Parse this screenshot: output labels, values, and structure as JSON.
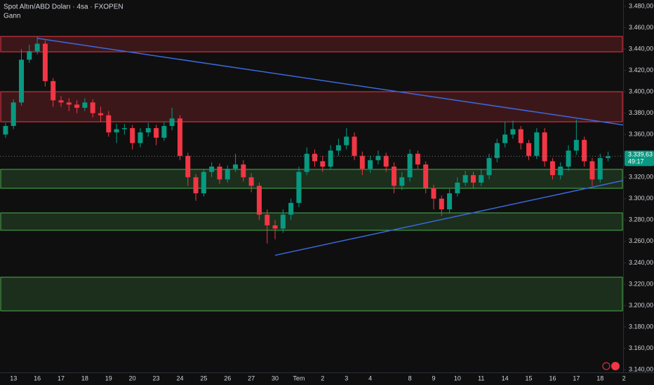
{
  "chart_data": {
    "type": "candlestick",
    "title": "Spot Altın/ABD Doları · 4sa · FXOPEN",
    "subtitle": "Gann",
    "categories": [
      null,
      "13",
      null,
      null,
      "16",
      null,
      null,
      "17",
      null,
      null,
      "18",
      null,
      null,
      "19",
      null,
      null,
      "20",
      null,
      null,
      "23",
      null,
      null,
      "24",
      null,
      null,
      "25",
      null,
      null,
      "26",
      null,
      null,
      "27",
      null,
      null,
      "30",
      null,
      null,
      "Tem",
      null,
      null,
      "2",
      null,
      null,
      "3",
      null,
      null,
      "4",
      null,
      null,
      null,
      null,
      "8",
      null,
      null,
      "9",
      null,
      null,
      "10",
      null,
      null,
      "11",
      null,
      null,
      "14",
      null,
      null,
      "15",
      null,
      null,
      "16",
      null,
      null,
      "17",
      null,
      null,
      "18",
      null,
      null,
      "2"
    ],
    "open": [
      3360,
      3368,
      3390,
      3430,
      3438,
      3445,
      3410,
      3392,
      3390,
      3388,
      3385,
      3390,
      3380,
      3378,
      3362,
      3365,
      3366,
      3352,
      3362,
      3366,
      3357,
      3368,
      3375,
      3340,
      3320,
      3305,
      3325,
      3330,
      3318,
      3328,
      3332,
      3320,
      3312,
      3285,
      3275,
      3272,
      3285,
      3296,
      3325,
      3342,
      3335,
      3330,
      3345,
      3350,
      3358,
      3340,
      3328,
      3336,
      3340,
      3330,
      3312,
      3320,
      3342,
      3332,
      3310,
      3300,
      3290,
      3305,
      3315,
      3322,
      3315,
      3322,
      3338,
      3352,
      3360,
      3365,
      3352,
      3340,
      3362,
      3335,
      3322,
      3330,
      3345,
      3355,
      3335,
      3318,
      3338,
      null,
      null
    ],
    "high": [
      3371,
      3393,
      3440,
      3444,
      3452,
      3448,
      3413,
      3396,
      3394,
      3392,
      3394,
      3393,
      3386,
      3382,
      3370,
      3370,
      3369,
      3366,
      3371,
      3369,
      3372,
      3385,
      3378,
      3343,
      3323,
      3328,
      3334,
      3333,
      3331,
      3342,
      3336,
      3324,
      3315,
      3290,
      3280,
      3290,
      3300,
      3330,
      3348,
      3346,
      3340,
      3350,
      3356,
      3366,
      3362,
      3344,
      3340,
      3345,
      3343,
      3334,
      3325,
      3346,
      3345,
      3335,
      3313,
      3303,
      3309,
      3320,
      3326,
      3325,
      3328,
      3342,
      3356,
      3372,
      3373,
      3368,
      3355,
      3366,
      3366,
      3338,
      3334,
      3350,
      3374,
      3358,
      3338,
      3342,
      3344,
      null,
      null
    ],
    "low": [
      3357,
      3365,
      3387,
      3427,
      3435,
      3405,
      3386,
      3386,
      3382,
      3380,
      3382,
      3376,
      3372,
      3358,
      3352,
      3360,
      3346,
      3348,
      3358,
      3350,
      3354,
      3364,
      3336,
      3312,
      3298,
      3302,
      3320,
      3314,
      3315,
      3325,
      3316,
      3306,
      3280,
      3258,
      3262,
      3268,
      3280,
      3292,
      3322,
      3330,
      3325,
      3327,
      3340,
      3346,
      3336,
      3322,
      3324,
      3332,
      3325,
      3305,
      3308,
      3316,
      3328,
      3305,
      3290,
      3284,
      3286,
      3302,
      3312,
      3310,
      3312,
      3318,
      3334,
      3348,
      3356,
      3346,
      3336,
      3337,
      3330,
      3318,
      3318,
      3326,
      3341,
      3330,
      3312,
      3315,
      3335,
      null,
      null
    ],
    "close": [
      3368,
      3390,
      3430,
      3438,
      3445,
      3410,
      3392,
      3390,
      3388,
      3385,
      3390,
      3380,
      3378,
      3362,
      3365,
      3366,
      3352,
      3362,
      3366,
      3357,
      3368,
      3375,
      3340,
      3320,
      3305,
      3325,
      3330,
      3318,
      3328,
      3332,
      3320,
      3312,
      3285,
      3275,
      3272,
      3285,
      3296,
      3325,
      3342,
      3335,
      3330,
      3345,
      3350,
      3358,
      3340,
      3328,
      3336,
      3340,
      3330,
      3312,
      3320,
      3342,
      3332,
      3310,
      3300,
      3290,
      3305,
      3315,
      3322,
      3315,
      3322,
      3338,
      3352,
      3360,
      3365,
      3352,
      3340,
      3362,
      3335,
      3322,
      3330,
      3345,
      3355,
      3335,
      3318,
      3338,
      3339.63,
      null,
      null
    ],
    "up_color": "#089981",
    "down_color": "#f23645",
    "zones": [
      {
        "from": 3437.4,
        "to": 3451.8,
        "color": "#f23645"
      },
      {
        "from": 3371.9,
        "to": 3400.1,
        "color": "#f23645"
      },
      {
        "from": 3309.7,
        "to": 3327.4,
        "color": "#4caf50"
      },
      {
        "from": 3270.4,
        "to": 3286.7,
        "color": "#4caf50"
      },
      {
        "from": 3195.0,
        "to": 3226.5,
        "color": "#4caf50"
      }
    ],
    "trendlines": [
      {
        "x": [
          4,
          77.9
        ],
        "y": [
          3450,
          3369
        ],
        "color": "#3d68e0"
      },
      {
        "x": [
          34,
          77.9
        ],
        "y": [
          3247,
          3317
        ],
        "color": "#3d68e0"
      }
    ],
    "xlim": [
      -0.7,
      77.9
    ],
    "ylim": [
      3137.4,
      3485.9
    ],
    "yticks": [
      {
        "value": 3140,
        "label": "3.140,00"
      },
      {
        "value": 3160,
        "label": "3.160,00"
      },
      {
        "value": 3180,
        "label": "3.180,00"
      },
      {
        "value": 3200,
        "label": "3.200,00"
      },
      {
        "value": 3220,
        "label": "3.220,00"
      },
      {
        "value": 3240,
        "label": "3.240,00"
      },
      {
        "value": 3260,
        "label": "3.260,00"
      },
      {
        "value": 3280,
        "label": "3.280,00"
      },
      {
        "value": 3300,
        "label": "3.300,00"
      },
      {
        "value": 3320,
        "label": "3.320,00"
      },
      {
        "value": 3340,
        "label": "3.340,00"
      },
      {
        "value": 3360,
        "label": "3.360,00"
      },
      {
        "value": 3380,
        "label": "3.380,00"
      },
      {
        "value": 3400,
        "label": "3.400,00"
      },
      {
        "value": 3420,
        "label": "3.420,00"
      },
      {
        "value": 3440,
        "label": "3.440,00"
      },
      {
        "value": 3460,
        "label": "3.460,00"
      },
      {
        "value": 3480,
        "label": "3.480,00"
      }
    ],
    "last_price": {
      "value": 3339.63,
      "label": "3.339,63"
    },
    "countdown": "49:17"
  }
}
